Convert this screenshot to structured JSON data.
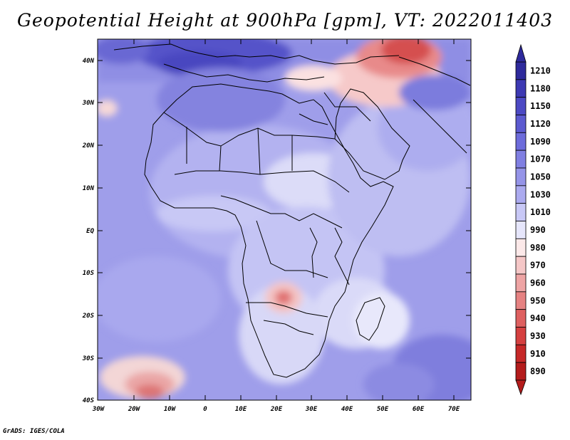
{
  "title": "Geopotential Height at 900hPa [gpm], VT: 2022011403",
  "credit": "GrADS: IGES/COLA",
  "map": {
    "lon_labels": [
      "30W",
      "20W",
      "10W",
      "0",
      "10E",
      "20E",
      "30E",
      "40E",
      "50E",
      "60E",
      "70E"
    ],
    "lat_labels": [
      "40N",
      "30N",
      "20N",
      "10N",
      "EQ",
      "10S",
      "20S",
      "30S",
      "40S"
    ],
    "region": "Africa and Middle East",
    "lon_range": [
      -30,
      75
    ],
    "lat_range": [
      -40,
      45
    ]
  },
  "colorbar": {
    "labels": [
      "1210",
      "1180",
      "1150",
      "1120",
      "1090",
      "1070",
      "1050",
      "1030",
      "1010",
      "990",
      "980",
      "970",
      "960",
      "950",
      "940",
      "930",
      "910",
      "890"
    ],
    "colors": [
      "#2e2a9c",
      "#3d39b3",
      "#4c49c4",
      "#5c5ad0",
      "#6d6cdb",
      "#807fe2",
      "#9594e8",
      "#abaaef",
      "#c8c8f6",
      "#e6e6fb",
      "#fce9e9",
      "#f5c7c7",
      "#eea4a4",
      "#e68282",
      "#de6060",
      "#d54040",
      "#c62828",
      "#b41c1c"
    ]
  },
  "chart_data": {
    "type": "heatmap",
    "title": "Geopotential Height at 900hPa [gpm], VT: 2022011403",
    "variable": "Geopotential Height",
    "level": "900hPa",
    "units": "gpm",
    "valid_time": "2022011403",
    "contour_levels": [
      1210,
      1180,
      1150,
      1120,
      1090,
      1070,
      1050,
      1030,
      1010,
      990,
      980,
      970,
      960,
      950,
      940,
      930,
      910,
      890
    ],
    "x_ticks": [
      "30W",
      "20W",
      "10W",
      "0",
      "10E",
      "20E",
      "30E",
      "40E",
      "50E",
      "60E",
      "70E"
    ],
    "y_ticks": [
      "40N",
      "30N",
      "20N",
      "10N",
      "EQ",
      "10S",
      "20S",
      "30S",
      "40S"
    ]
  }
}
